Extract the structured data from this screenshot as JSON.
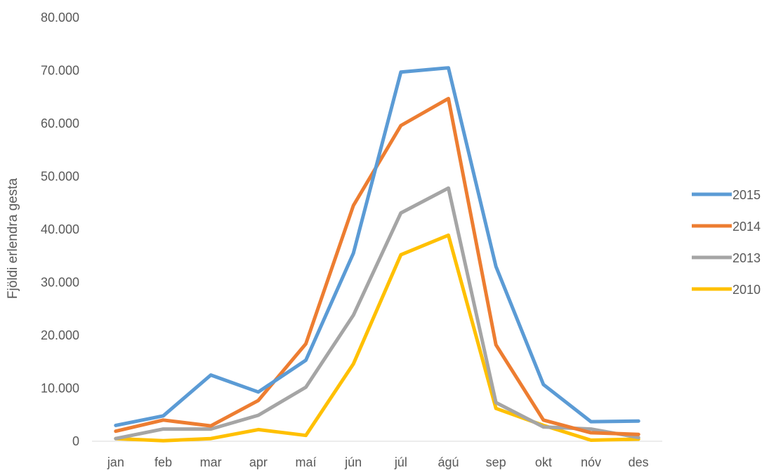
{
  "chart_data": {
    "type": "line",
    "title": "",
    "xlabel": "",
    "ylabel": "Fjöldi erlendra gesta",
    "ylim": [
      0,
      80000
    ],
    "yticks": [
      0,
      10000,
      20000,
      30000,
      40000,
      50000,
      60000,
      70000,
      80000
    ],
    "ytick_labels": [
      "0",
      "10.000",
      "20.000",
      "30.000",
      "40.000",
      "50.000",
      "60.000",
      "70.000",
      "80.000"
    ],
    "categories": [
      "jan",
      "feb",
      "mar",
      "apr",
      "maí",
      "jún",
      "júl",
      "ágú",
      "sep",
      "okt",
      "nóv",
      "des"
    ],
    "grid": false,
    "legend_position": "right",
    "series": [
      {
        "name": "2015",
        "color": "#5b9bd5",
        "values": [
          3000,
          4800,
          12500,
          9300,
          15300,
          35500,
          69700,
          70500,
          33000,
          10700,
          3700,
          3800
        ]
      },
      {
        "name": "2014",
        "color": "#ed7d31",
        "values": [
          1900,
          4000,
          2900,
          7700,
          18400,
          44500,
          59600,
          64700,
          18200,
          4000,
          1600,
          1300
        ]
      },
      {
        "name": "2013",
        "color": "#a5a5a5",
        "values": [
          500,
          2300,
          2300,
          4900,
          10200,
          23800,
          43100,
          47800,
          7300,
          2700,
          2300,
          700
        ]
      },
      {
        "name": "2010",
        "color": "#ffc000",
        "values": [
          500,
          100,
          500,
          2200,
          1100,
          14600,
          35200,
          38900,
          6200,
          3000,
          200,
          400
        ]
      }
    ]
  }
}
